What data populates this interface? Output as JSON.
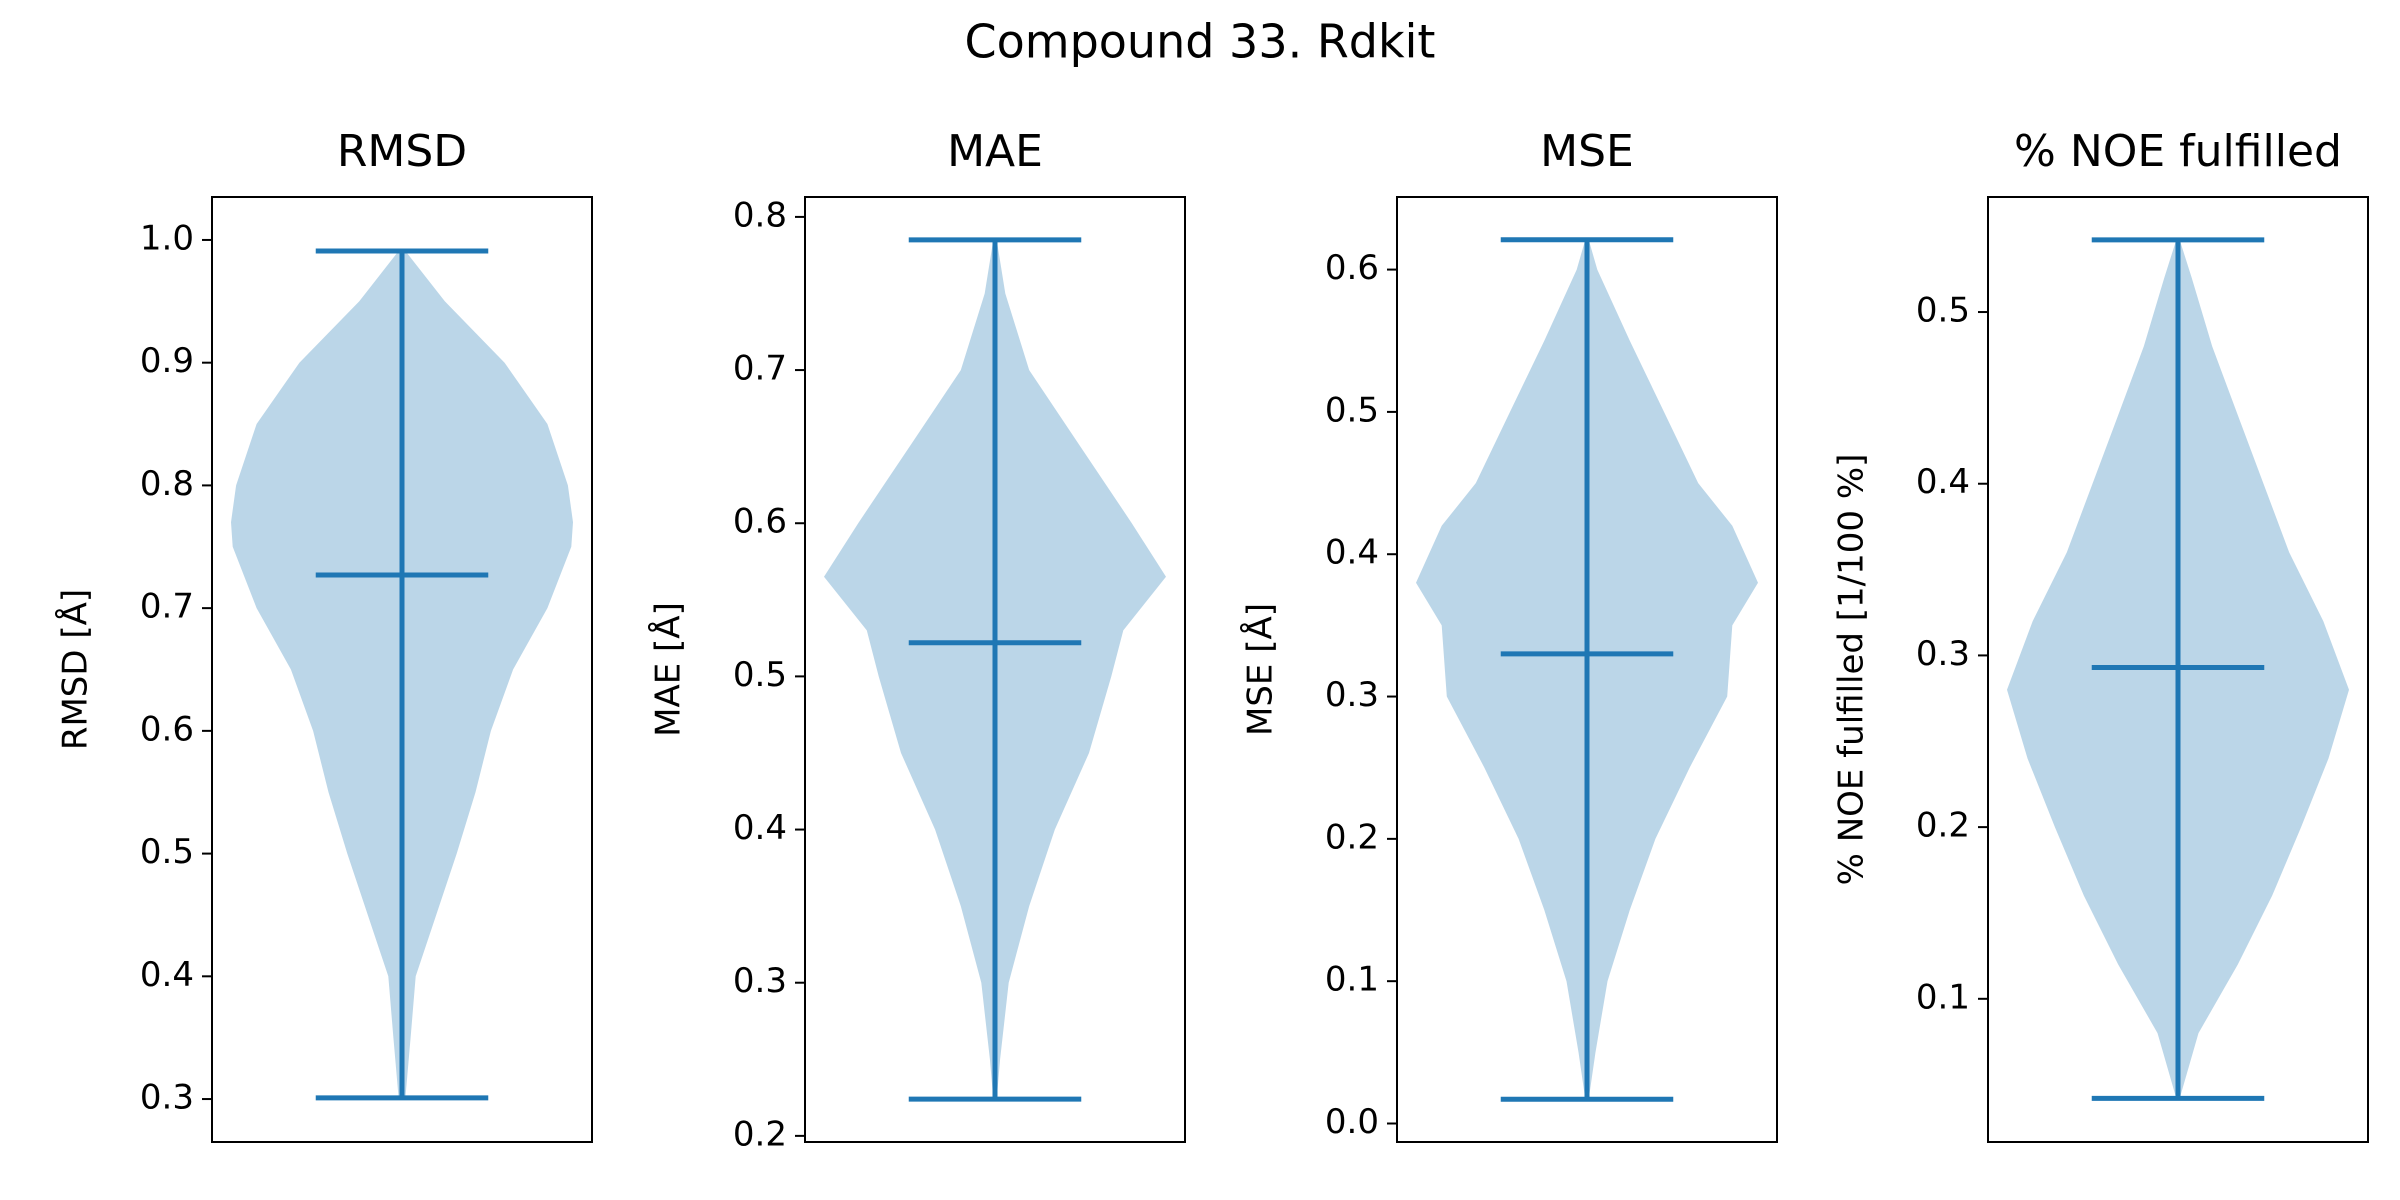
{
  "title": "Compound 33. Rdkit",
  "chart_data": [
    {
      "type": "violin",
      "title": "RMSD",
      "ylabel": "RMSD [Å]",
      "color": "#1f77b4",
      "ylim": [
        0.265,
        1.035
      ],
      "yticks": [
        0.3,
        0.4,
        0.5,
        0.6,
        0.7,
        0.8,
        0.9,
        {
          "value": 1,
          "label": "1.0"
        }
      ],
      "min": 0.301,
      "max": 0.991,
      "mean": 0.727,
      "kde": {
        "y": [
          0.301,
          0.35,
          0.4,
          0.45,
          0.5,
          0.55,
          0.6,
          0.65,
          0.7,
          0.75,
          0.77,
          0.8,
          0.85,
          0.9,
          0.95,
          0.991
        ],
        "width": [
          0.02,
          0.05,
          0.08,
          0.2,
          0.32,
          0.43,
          0.52,
          0.65,
          0.85,
          0.99,
          1.0,
          0.97,
          0.85,
          0.6,
          0.25,
          0.02
        ]
      }
    },
    {
      "type": "violin",
      "title": "MAE",
      "ylabel": "MAE [Å]",
      "color": "#1f77b4",
      "ylim": [
        0.196,
        0.813
      ],
      "yticks": [
        0.2,
        0.3,
        0.4,
        0.5,
        0.6,
        0.7,
        0.8
      ],
      "min": 0.224,
      "max": 0.785,
      "mean": 0.522,
      "kde": {
        "y": [
          0.224,
          0.25,
          0.3,
          0.35,
          0.4,
          0.45,
          0.5,
          0.53,
          0.565,
          0.6,
          0.65,
          0.7,
          0.75,
          0.785
        ],
        "width": [
          0.01,
          0.03,
          0.08,
          0.2,
          0.35,
          0.55,
          0.68,
          0.75,
          1.0,
          0.8,
          0.5,
          0.2,
          0.06,
          0.01
        ]
      }
    },
    {
      "type": "violin",
      "title": "MSE",
      "ylabel": "MSE [Å]",
      "color": "#1f77b4",
      "ylim": [
        -0.013,
        0.651
      ],
      "yticks": [
        {
          "value": 0,
          "label": "0.0"
        },
        0.1,
        0.2,
        0.3,
        0.4,
        0.5,
        0.6
      ],
      "min": 0.017,
      "max": 0.621,
      "mean": 0.33,
      "kde": {
        "y": [
          0.017,
          0.05,
          0.1,
          0.15,
          0.2,
          0.25,
          0.3,
          0.35,
          0.38,
          0.42,
          0.45,
          0.5,
          0.55,
          0.6,
          0.621
        ],
        "width": [
          0.01,
          0.05,
          0.12,
          0.25,
          0.4,
          0.6,
          0.82,
          0.85,
          1.0,
          0.85,
          0.65,
          0.45,
          0.25,
          0.06,
          0.01
        ]
      }
    },
    {
      "type": "violin",
      "title": "% NOE fulfilled",
      "ylabel": "% NOE fulfilled [1/100 %]",
      "color": "#1f77b4",
      "ylim": [
        0.0166,
        0.567
      ],
      "yticks": [
        0.1,
        0.2,
        0.3,
        0.4,
        0.5
      ],
      "min": 0.042,
      "max": 0.542,
      "mean": 0.293,
      "kde": {
        "y": [
          0.042,
          0.08,
          0.12,
          0.16,
          0.2,
          0.24,
          0.28,
          0.32,
          0.36,
          0.4,
          0.44,
          0.48,
          0.52,
          0.542
        ],
        "width": [
          0.01,
          0.12,
          0.35,
          0.55,
          0.72,
          0.88,
          1.0,
          0.85,
          0.65,
          0.5,
          0.35,
          0.2,
          0.08,
          0.01
        ]
      }
    }
  ]
}
